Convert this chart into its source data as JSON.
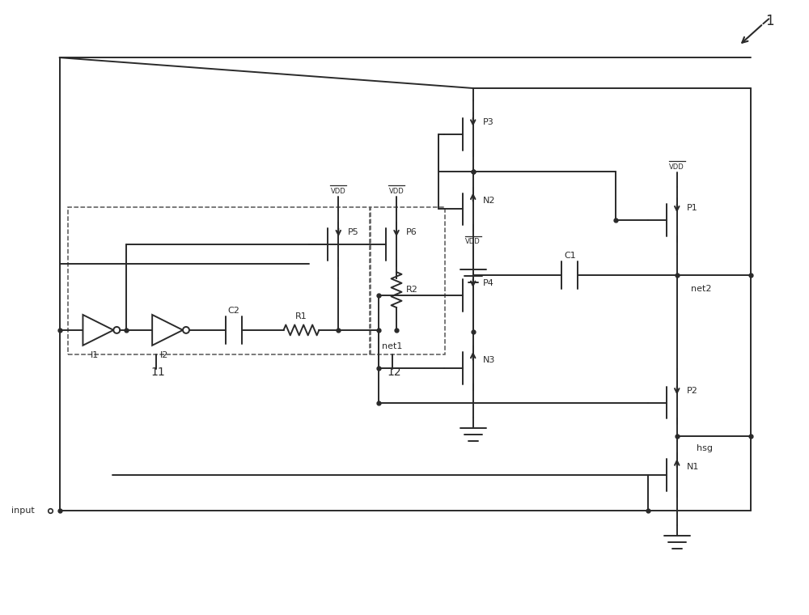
{
  "line_color": "#2a2a2a",
  "line_width": 1.4,
  "bg_color": "#ffffff",
  "labels": {
    "1": "1",
    "11": "11",
    "12": "12",
    "input": "input",
    "net1": "net1",
    "net2": "net2",
    "hsg": "hsg",
    "VDD": "VDD",
    "I1": "I1",
    "I2": "I2",
    "C2": "C2",
    "R1": "R1",
    "R2": "R2",
    "C1": "C1",
    "P1": "P1",
    "P2": "P2",
    "P3": "P3",
    "P4": "P4",
    "P5": "P5",
    "P6": "P6",
    "N1": "N1",
    "N2": "N2",
    "N3": "N3"
  }
}
